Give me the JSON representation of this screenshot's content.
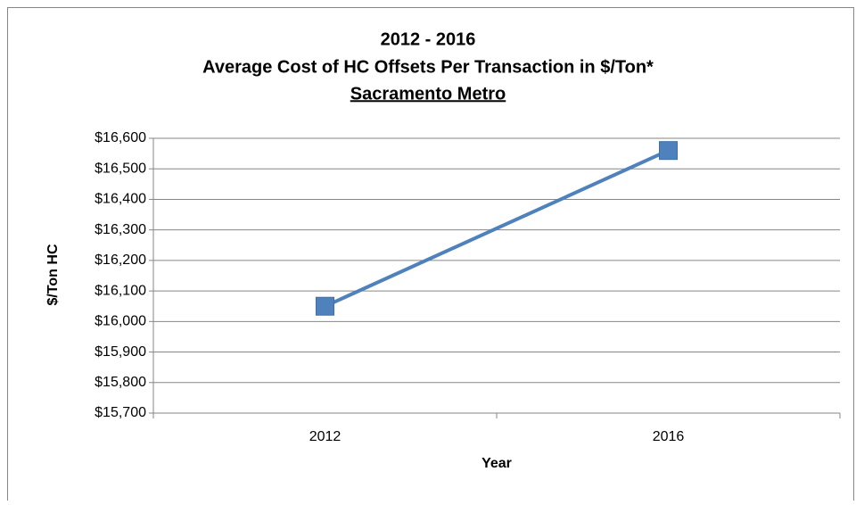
{
  "chart_data": {
    "type": "line",
    "title_lines": [
      "2012 - 2016",
      "Average Cost of HC Offsets Per Transaction in $/Ton*",
      "Sacramento Metro"
    ],
    "x_label": "Year",
    "y_label": "$/Ton HC",
    "categories": [
      "2012",
      "2016"
    ],
    "series": [
      {
        "name": "Sacramento Metro",
        "color": "#4f81bd",
        "values": [
          16050,
          16560
        ]
      }
    ],
    "ylim": [
      15700,
      16600
    ],
    "yticks": [
      {
        "value": 15700,
        "label": "$15,700"
      },
      {
        "value": 15800,
        "label": "$15,800"
      },
      {
        "value": 15900,
        "label": "$15,900"
      },
      {
        "value": 16000,
        "label": "$16,000"
      },
      {
        "value": 16100,
        "label": "$16,100"
      },
      {
        "value": 16200,
        "label": "$16,200"
      },
      {
        "value": 16300,
        "label": "$16,300"
      },
      {
        "value": 16400,
        "label": "$16,400"
      },
      {
        "value": 16500,
        "label": "$16,500"
      },
      {
        "value": 16600,
        "label": "$16,600"
      }
    ],
    "grid": true,
    "legend": false
  }
}
